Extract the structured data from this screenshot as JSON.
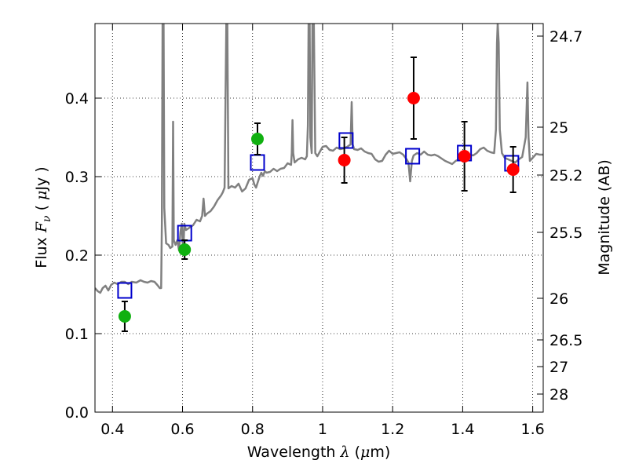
{
  "chart_data": {
    "type": "scatter",
    "xlabel_parts": [
      "Wavelength  ",
      "λ",
      " (",
      "μ",
      "m)"
    ],
    "ylabel_parts": [
      "Flux  ",
      "F",
      "ν",
      "  ( ",
      "μ",
      "Jy )"
    ],
    "y2label": "Magnitude (AB)",
    "xlim": [
      0.35,
      1.63
    ],
    "ylim": [
      0.0,
      0.495
    ],
    "xticks": [
      0.4,
      0.6,
      0.8,
      1.0,
      1.2,
      1.4,
      1.6
    ],
    "xtick_labels": [
      "0.4",
      "0.6",
      "0.8",
      "1",
      "1.2",
      "1.4",
      "1.6"
    ],
    "yticks": [
      0.0,
      0.1,
      0.2,
      0.3,
      0.4
    ],
    "ytick_labels": [
      "0.0",
      "0.1",
      "0.2",
      "0.3",
      "0.4"
    ],
    "y2ticks": [
      {
        "label": "24.7",
        "flux": 0.479
      },
      {
        "label": "25",
        "flux": 0.363
      },
      {
        "label": "25.2",
        "flux": 0.302
      },
      {
        "label": "25.5",
        "flux": 0.229
      },
      {
        "label": "26",
        "flux": 0.145
      },
      {
        "label": "26.5",
        "flux": 0.092
      },
      {
        "label": "27",
        "flux": 0.058
      },
      {
        "label": "28",
        "flux": 0.023
      }
    ],
    "grid": true,
    "colors": {
      "sed": "#808080",
      "model": "#0000cc",
      "green": "#10b010",
      "red": "#ff0000",
      "errorbar": "#000000"
    },
    "series": [
      {
        "marker": "circle",
        "color": "#10b010",
        "points": [
          {
            "x": 0.435,
            "y": 0.122,
            "err": 0.019
          },
          {
            "x": 0.606,
            "y": 0.207,
            "err": 0.012
          },
          {
            "x": 0.814,
            "y": 0.348,
            "err": 0.02
          }
        ]
      },
      {
        "marker": "circle",
        "color": "#ff0000",
        "points": [
          {
            "x": 1.062,
            "y": 0.321,
            "err": 0.029
          },
          {
            "x": 1.26,
            "y": 0.4,
            "err": 0.052
          },
          {
            "x": 1.405,
            "y": 0.326,
            "err": 0.044
          },
          {
            "x": 1.544,
            "y": 0.309,
            "err": 0.029
          }
        ]
      },
      {
        "marker": "open-square",
        "color": "#0000cc",
        "points": [
          {
            "x": 0.435,
            "y": 0.155
          },
          {
            "x": 0.606,
            "y": 0.228
          },
          {
            "x": 0.814,
            "y": 0.318
          },
          {
            "x": 1.067,
            "y": 0.346
          },
          {
            "x": 1.257,
            "y": 0.326
          },
          {
            "x": 1.405,
            "y": 0.33
          },
          {
            "x": 1.54,
            "y": 0.317
          }
        ]
      },
      {
        "marker": "line",
        "color": "#808080",
        "points": [
          [
            0.35,
            0.158
          ],
          [
            0.358,
            0.154
          ],
          [
            0.365,
            0.152
          ],
          [
            0.372,
            0.158
          ],
          [
            0.38,
            0.161
          ],
          [
            0.388,
            0.155
          ],
          [
            0.396,
            0.162
          ],
          [
            0.405,
            0.165
          ],
          [
            0.415,
            0.163
          ],
          [
            0.425,
            0.166
          ],
          [
            0.435,
            0.166
          ],
          [
            0.445,
            0.163
          ],
          [
            0.455,
            0.166
          ],
          [
            0.468,
            0.165
          ],
          [
            0.48,
            0.168
          ],
          [
            0.49,
            0.166
          ],
          [
            0.5,
            0.165
          ],
          [
            0.51,
            0.167
          ],
          [
            0.52,
            0.166
          ],
          [
            0.528,
            0.162
          ],
          [
            0.535,
            0.158
          ],
          [
            0.539,
            0.158
          ],
          [
            0.541,
            0.24
          ],
          [
            0.543,
            0.495
          ],
          [
            0.546,
            0.495
          ],
          [
            0.548,
            0.26
          ],
          [
            0.553,
            0.215
          ],
          [
            0.56,
            0.213
          ],
          [
            0.565,
            0.209
          ],
          [
            0.571,
            0.211
          ],
          [
            0.573,
            0.37
          ],
          [
            0.575,
            0.219
          ],
          [
            0.58,
            0.213
          ],
          [
            0.585,
            0.219
          ],
          [
            0.59,
            0.206
          ],
          [
            0.594,
            0.229
          ],
          [
            0.598,
            0.24
          ],
          [
            0.602,
            0.2
          ],
          [
            0.605,
            0.24
          ],
          [
            0.61,
            0.232
          ],
          [
            0.62,
            0.235
          ],
          [
            0.63,
            0.238
          ],
          [
            0.64,
            0.245
          ],
          [
            0.65,
            0.243
          ],
          [
            0.656,
            0.25
          ],
          [
            0.66,
            0.272
          ],
          [
            0.664,
            0.25
          ],
          [
            0.67,
            0.253
          ],
          [
            0.68,
            0.256
          ],
          [
            0.69,
            0.262
          ],
          [
            0.7,
            0.27
          ],
          [
            0.71,
            0.276
          ],
          [
            0.715,
            0.28
          ],
          [
            0.72,
            0.286
          ],
          [
            0.723,
            0.41
          ],
          [
            0.725,
            0.495
          ],
          [
            0.728,
            0.495
          ],
          [
            0.731,
            0.285
          ],
          [
            0.74,
            0.288
          ],
          [
            0.75,
            0.286
          ],
          [
            0.76,
            0.291
          ],
          [
            0.77,
            0.281
          ],
          [
            0.78,
            0.285
          ],
          [
            0.79,
            0.296
          ],
          [
            0.8,
            0.298
          ],
          [
            0.805,
            0.29
          ],
          [
            0.81,
            0.286
          ],
          [
            0.815,
            0.293
          ],
          [
            0.82,
            0.3
          ],
          [
            0.825,
            0.305
          ],
          [
            0.83,
            0.301
          ],
          [
            0.835,
            0.307
          ],
          [
            0.84,
            0.305
          ],
          [
            0.85,
            0.306
          ],
          [
            0.86,
            0.31
          ],
          [
            0.87,
            0.307
          ],
          [
            0.88,
            0.31
          ],
          [
            0.89,
            0.311
          ],
          [
            0.9,
            0.317
          ],
          [
            0.91,
            0.315
          ],
          [
            0.912,
            0.33
          ],
          [
            0.914,
            0.372
          ],
          [
            0.916,
            0.33
          ],
          [
            0.92,
            0.318
          ],
          [
            0.93,
            0.322
          ],
          [
            0.94,
            0.324
          ],
          [
            0.95,
            0.322
          ],
          [
            0.955,
            0.326
          ],
          [
            0.958,
            0.365
          ],
          [
            0.96,
            0.495
          ],
          [
            0.963,
            0.495
          ],
          [
            0.965,
            0.35
          ],
          [
            0.969,
            0.33
          ],
          [
            0.971,
            0.495
          ],
          [
            0.975,
            0.495
          ],
          [
            0.979,
            0.33
          ],
          [
            0.985,
            0.326
          ],
          [
            0.99,
            0.33
          ],
          [
            1.0,
            0.338
          ],
          [
            1.01,
            0.339
          ],
          [
            1.02,
            0.334
          ],
          [
            1.03,
            0.333
          ],
          [
            1.04,
            0.337
          ],
          [
            1.05,
            0.335
          ],
          [
            1.06,
            0.336
          ],
          [
            1.07,
            0.338
          ],
          [
            1.08,
            0.341
          ],
          [
            1.083,
            0.395
          ],
          [
            1.086,
            0.341
          ],
          [
            1.09,
            0.335
          ],
          [
            1.1,
            0.334
          ],
          [
            1.11,
            0.336
          ],
          [
            1.12,
            0.332
          ],
          [
            1.13,
            0.33
          ],
          [
            1.14,
            0.329
          ],
          [
            1.15,
            0.322
          ],
          [
            1.16,
            0.319
          ],
          [
            1.17,
            0.32
          ],
          [
            1.18,
            0.328
          ],
          [
            1.19,
            0.333
          ],
          [
            1.2,
            0.329
          ],
          [
            1.21,
            0.33
          ],
          [
            1.22,
            0.331
          ],
          [
            1.23,
            0.328
          ],
          [
            1.24,
            0.322
          ],
          [
            1.245,
            0.318
          ],
          [
            1.25,
            0.294
          ],
          [
            1.255,
            0.32
          ],
          [
            1.26,
            0.327
          ],
          [
            1.27,
            0.33
          ],
          [
            1.28,
            0.328
          ],
          [
            1.29,
            0.332
          ],
          [
            1.3,
            0.328
          ],
          [
            1.31,
            0.327
          ],
          [
            1.32,
            0.328
          ],
          [
            1.33,
            0.326
          ],
          [
            1.34,
            0.323
          ],
          [
            1.35,
            0.32
          ],
          [
            1.36,
            0.318
          ],
          [
            1.37,
            0.316
          ],
          [
            1.38,
            0.32
          ],
          [
            1.39,
            0.322
          ],
          [
            1.4,
            0.325
          ],
          [
            1.41,
            0.325
          ],
          [
            1.42,
            0.328
          ],
          [
            1.43,
            0.327
          ],
          [
            1.44,
            0.33
          ],
          [
            1.45,
            0.335
          ],
          [
            1.46,
            0.337
          ],
          [
            1.47,
            0.333
          ],
          [
            1.48,
            0.331
          ],
          [
            1.49,
            0.33
          ],
          [
            1.495,
            0.36
          ],
          [
            1.498,
            0.47
          ],
          [
            1.5,
            0.495
          ],
          [
            1.503,
            0.47
          ],
          [
            1.506,
            0.36
          ],
          [
            1.512,
            0.33
          ],
          [
            1.52,
            0.324
          ],
          [
            1.53,
            0.322
          ],
          [
            1.54,
            0.32
          ],
          [
            1.55,
            0.318
          ],
          [
            1.56,
            0.322
          ],
          [
            1.57,
            0.325
          ],
          [
            1.58,
            0.35
          ],
          [
            1.585,
            0.42
          ],
          [
            1.588,
            0.35
          ],
          [
            1.592,
            0.32
          ],
          [
            1.6,
            0.324
          ],
          [
            1.61,
            0.329
          ],
          [
            1.62,
            0.328
          ],
          [
            1.63,
            0.328
          ]
        ]
      }
    ]
  }
}
